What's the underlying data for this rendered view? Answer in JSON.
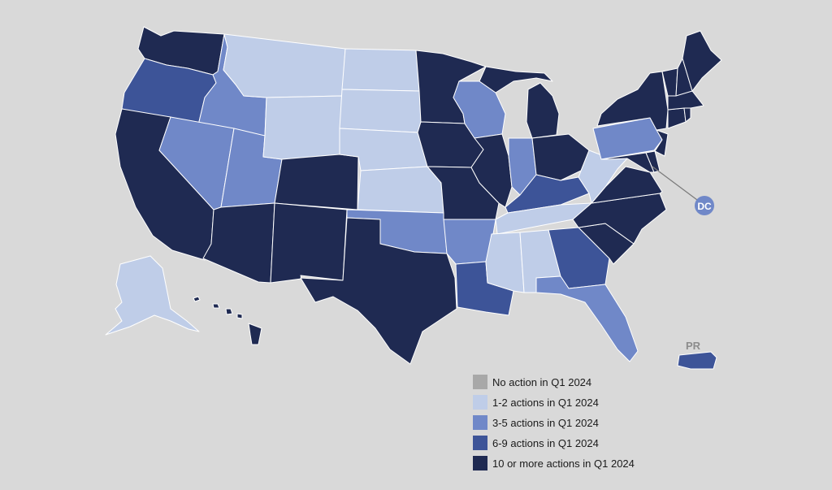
{
  "colors": {
    "background": "#d9d9d9",
    "none": "#a8a8a8",
    "one_two": "#bfcde8",
    "three_five": "#7088c8",
    "six_nine": "#3d5498",
    "ten_plus": "#1f2a52"
  },
  "labels": {
    "dc": "DC",
    "pr": "PR"
  },
  "legend": [
    {
      "label": "No action in Q1 2024",
      "category": "none"
    },
    {
      "label": "1-2 actions in Q1 2024",
      "category": "one_two"
    },
    {
      "label": "3-5 actions in Q1 2024",
      "category": "three_five"
    },
    {
      "label": "6-9 actions in Q1 2024",
      "category": "six_nine"
    },
    {
      "label": "10 or more actions in Q1 2024",
      "category": "ten_plus"
    }
  ],
  "states": {
    "WA": "ten_plus",
    "OR": "six_nine",
    "CA": "ten_plus",
    "ID": "three_five",
    "NV": "three_five",
    "UT": "three_five",
    "AZ": "ten_plus",
    "MT": "one_two",
    "WY": "one_two",
    "CO": "ten_plus",
    "NM": "ten_plus",
    "ND": "one_two",
    "SD": "one_two",
    "NE": "one_two",
    "KS": "one_two",
    "OK": "three_five",
    "TX": "ten_plus",
    "MN": "ten_plus",
    "IA": "ten_plus",
    "MO": "ten_plus",
    "AR": "three_five",
    "LA": "six_nine",
    "WI": "three_five",
    "IL": "ten_plus",
    "MI": "ten_plus",
    "IN": "three_five",
    "OH": "ten_plus",
    "KY": "six_nine",
    "TN": "one_two",
    "MS": "one_two",
    "AL": "one_two",
    "GA": "six_nine",
    "FL": "three_five",
    "SC": "ten_plus",
    "NC": "ten_plus",
    "VA": "ten_plus",
    "WV": "one_two",
    "MD": "ten_plus",
    "DE": "ten_plus",
    "PA": "three_five",
    "NJ": "ten_plus",
    "NY": "ten_plus",
    "CT": "ten_plus",
    "RI": "ten_plus",
    "MA": "ten_plus",
    "VT": "ten_plus",
    "NH": "ten_plus",
    "ME": "ten_plus",
    "AK": "one_two",
    "HI": "ten_plus",
    "PR": "six_nine",
    "DC": "three_five"
  }
}
